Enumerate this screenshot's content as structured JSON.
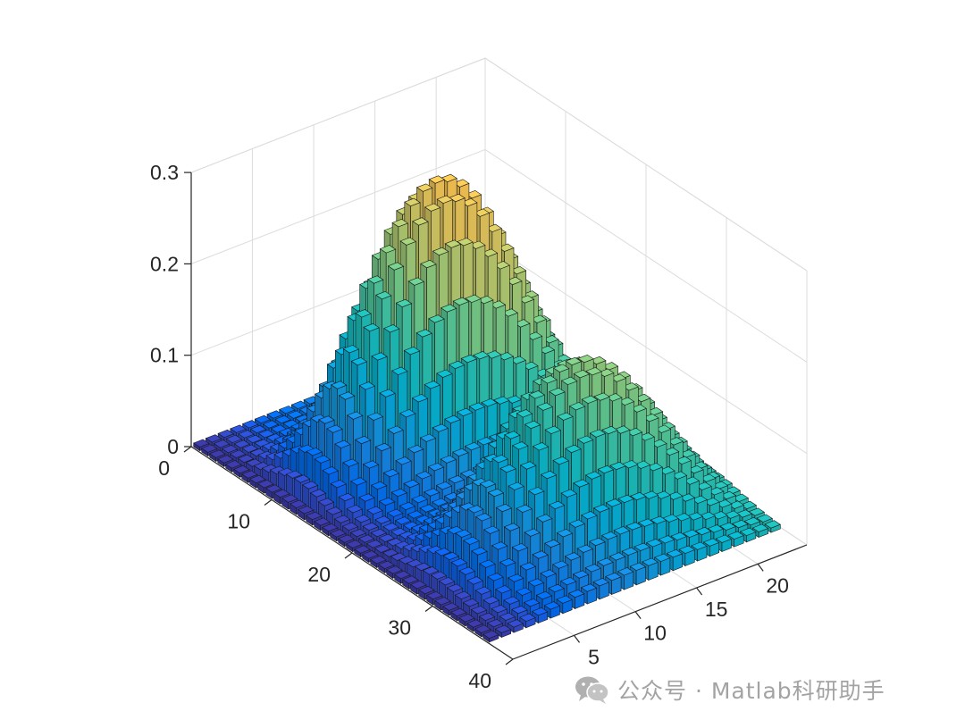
{
  "chart_data": {
    "type": "bar3",
    "title": "",
    "xlabel": "",
    "ylabel": "",
    "zlabel": "",
    "x_range": [
      0,
      24
    ],
    "y_range": [
      0,
      40
    ],
    "z_range": [
      0,
      0.3
    ],
    "x_ticks": [
      5,
      10,
      15,
      20
    ],
    "y_ticks": [
      0,
      10,
      20,
      30,
      40
    ],
    "z_ticks": [
      0,
      0.1,
      0.2,
      0.3
    ],
    "x_tick_labels": [
      "5",
      "10",
      "15",
      "20"
    ],
    "y_tick_labels": [
      "0",
      "10",
      "20",
      "30",
      "40"
    ],
    "z_tick_labels": [
      "0",
      "0.1",
      "0.2",
      "0.3"
    ],
    "grid": true,
    "colormap": "parula",
    "colormap_direction": "color varies with x (column index)",
    "n_columns": 24,
    "n_rows": 37,
    "surface_description": "two bell-shaped ridges along x; first ridge centered near row 12 (peak ≈ 0.29), second near row 29 (peak ≈ 0.19), near zero at rows 1-3 and 20-24",
    "peak_values": [
      {
        "row": 12,
        "z": 0.29
      },
      {
        "row": 29,
        "z": 0.19
      }
    ]
  },
  "watermark": {
    "text": "公众号 · Matlab科研助手",
    "icon": "wechat-icon"
  }
}
